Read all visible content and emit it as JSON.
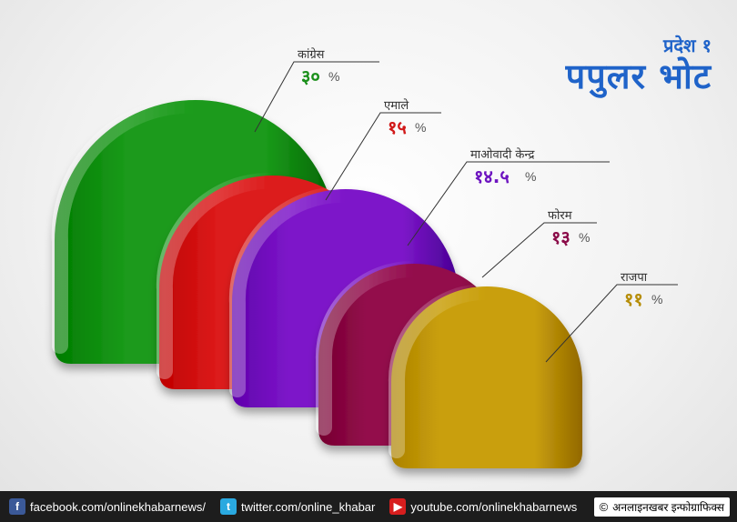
{
  "header": {
    "subtitle": "प्रदेश १",
    "title": "पपुलर भोट"
  },
  "chart_data": {
    "type": "bar",
    "categories": [
      "कांग्रेस",
      "एमाले",
      "माओवादी केन्द्र",
      "फोरम",
      "राजपा"
    ],
    "value_labels": [
      "३०",
      "१५",
      "१४.५",
      "१३",
      "११"
    ],
    "values": [
      30,
      15,
      14.5,
      13,
      11
    ],
    "unit": "%",
    "colors": [
      "#1a9a1a",
      "#dc1a1a",
      "#7d16c9",
      "#930b4c",
      "#c99f0b"
    ],
    "value_colors": [
      "#1a8f1a",
      "#d11919",
      "#6d14c0",
      "#8a0b48",
      "#b68d07"
    ]
  },
  "footer": {
    "facebook": "facebook.com/onlinekhabarnews/",
    "twitter": "twitter.com/online_khabar",
    "youtube": "youtube.com/onlinekhabarnews",
    "credit": "अनलाइनखबर इन्फोग्राफिक्स",
    "copyright_symbol": "©",
    "icons": [
      "facebook-icon",
      "twitter-icon",
      "youtube-icon"
    ]
  }
}
